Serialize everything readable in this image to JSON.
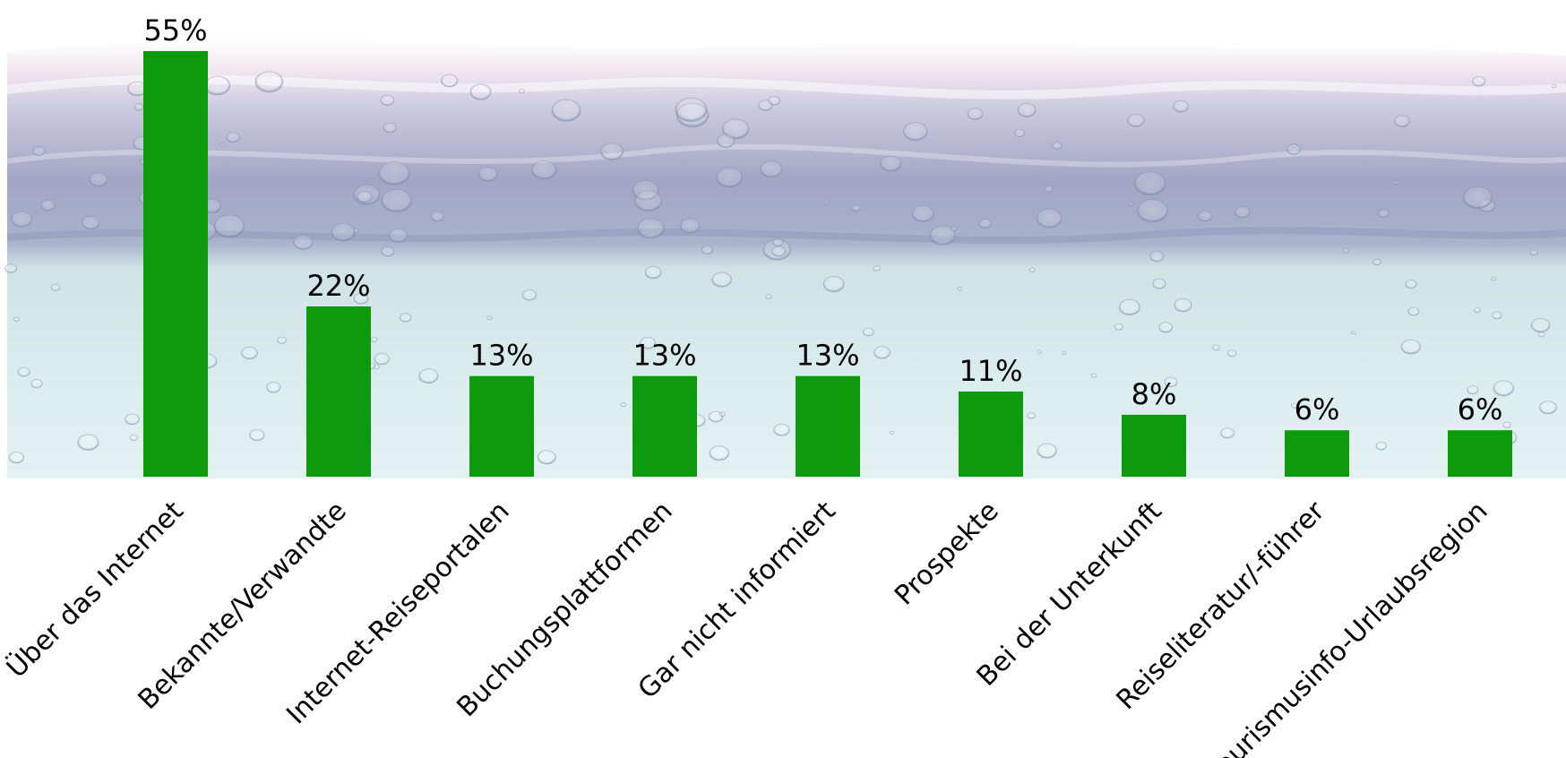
{
  "chart_data": {
    "type": "bar",
    "categories": [
      "Über das Internet",
      "Bekannte/Verwandte",
      "Internet-Reiseportalen",
      "Buchungsplattformen",
      "Gar nicht informiert",
      "Prospekte",
      "Bei der Unterkunft",
      "Reiseliteratur/-führer",
      "Tourismusinfo-Urlaubsregion"
    ],
    "values": [
      55,
      22,
      13,
      13,
      13,
      11,
      8,
      6,
      6
    ],
    "value_labels": [
      "55%",
      "22%",
      "13%",
      "13%",
      "13%",
      "11%",
      "8%",
      "6%",
      "6%"
    ],
    "ylim": [
      0,
      55
    ],
    "grid": false,
    "legend": "none",
    "bar_color": "#0d9a0d"
  }
}
